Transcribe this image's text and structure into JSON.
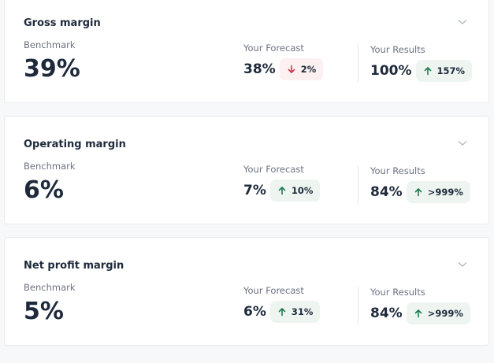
{
  "cards": [
    {
      "title": "Gross margin",
      "benchmark_label": "Benchmark",
      "benchmark_value": "39%",
      "forecast_label": "Your Forecast",
      "forecast_value": "38%",
      "forecast_change": "2%",
      "forecast_trend": "down",
      "results_label": "Your Results",
      "results_value": "100%",
      "results_change": "157%",
      "results_trend": "up"
    },
    {
      "title": "Operating margin",
      "benchmark_label": "Benchmark",
      "benchmark_value": "6%",
      "forecast_label": "Your Forecast",
      "forecast_value": "7%",
      "forecast_change": "10%",
      "forecast_trend": "up",
      "results_label": "Your Results",
      "results_value": "84%",
      "results_change": ">999%",
      "results_trend": "up"
    },
    {
      "title": "Net profit margin",
      "benchmark_label": "Benchmark",
      "benchmark_value": "5%",
      "forecast_label": "Your Forecast",
      "forecast_value": "6%",
      "forecast_change": "31%",
      "forecast_trend": "up",
      "results_label": "Your Results",
      "results_value": "84%",
      "results_change": ">999%",
      "results_trend": "up"
    }
  ]
}
